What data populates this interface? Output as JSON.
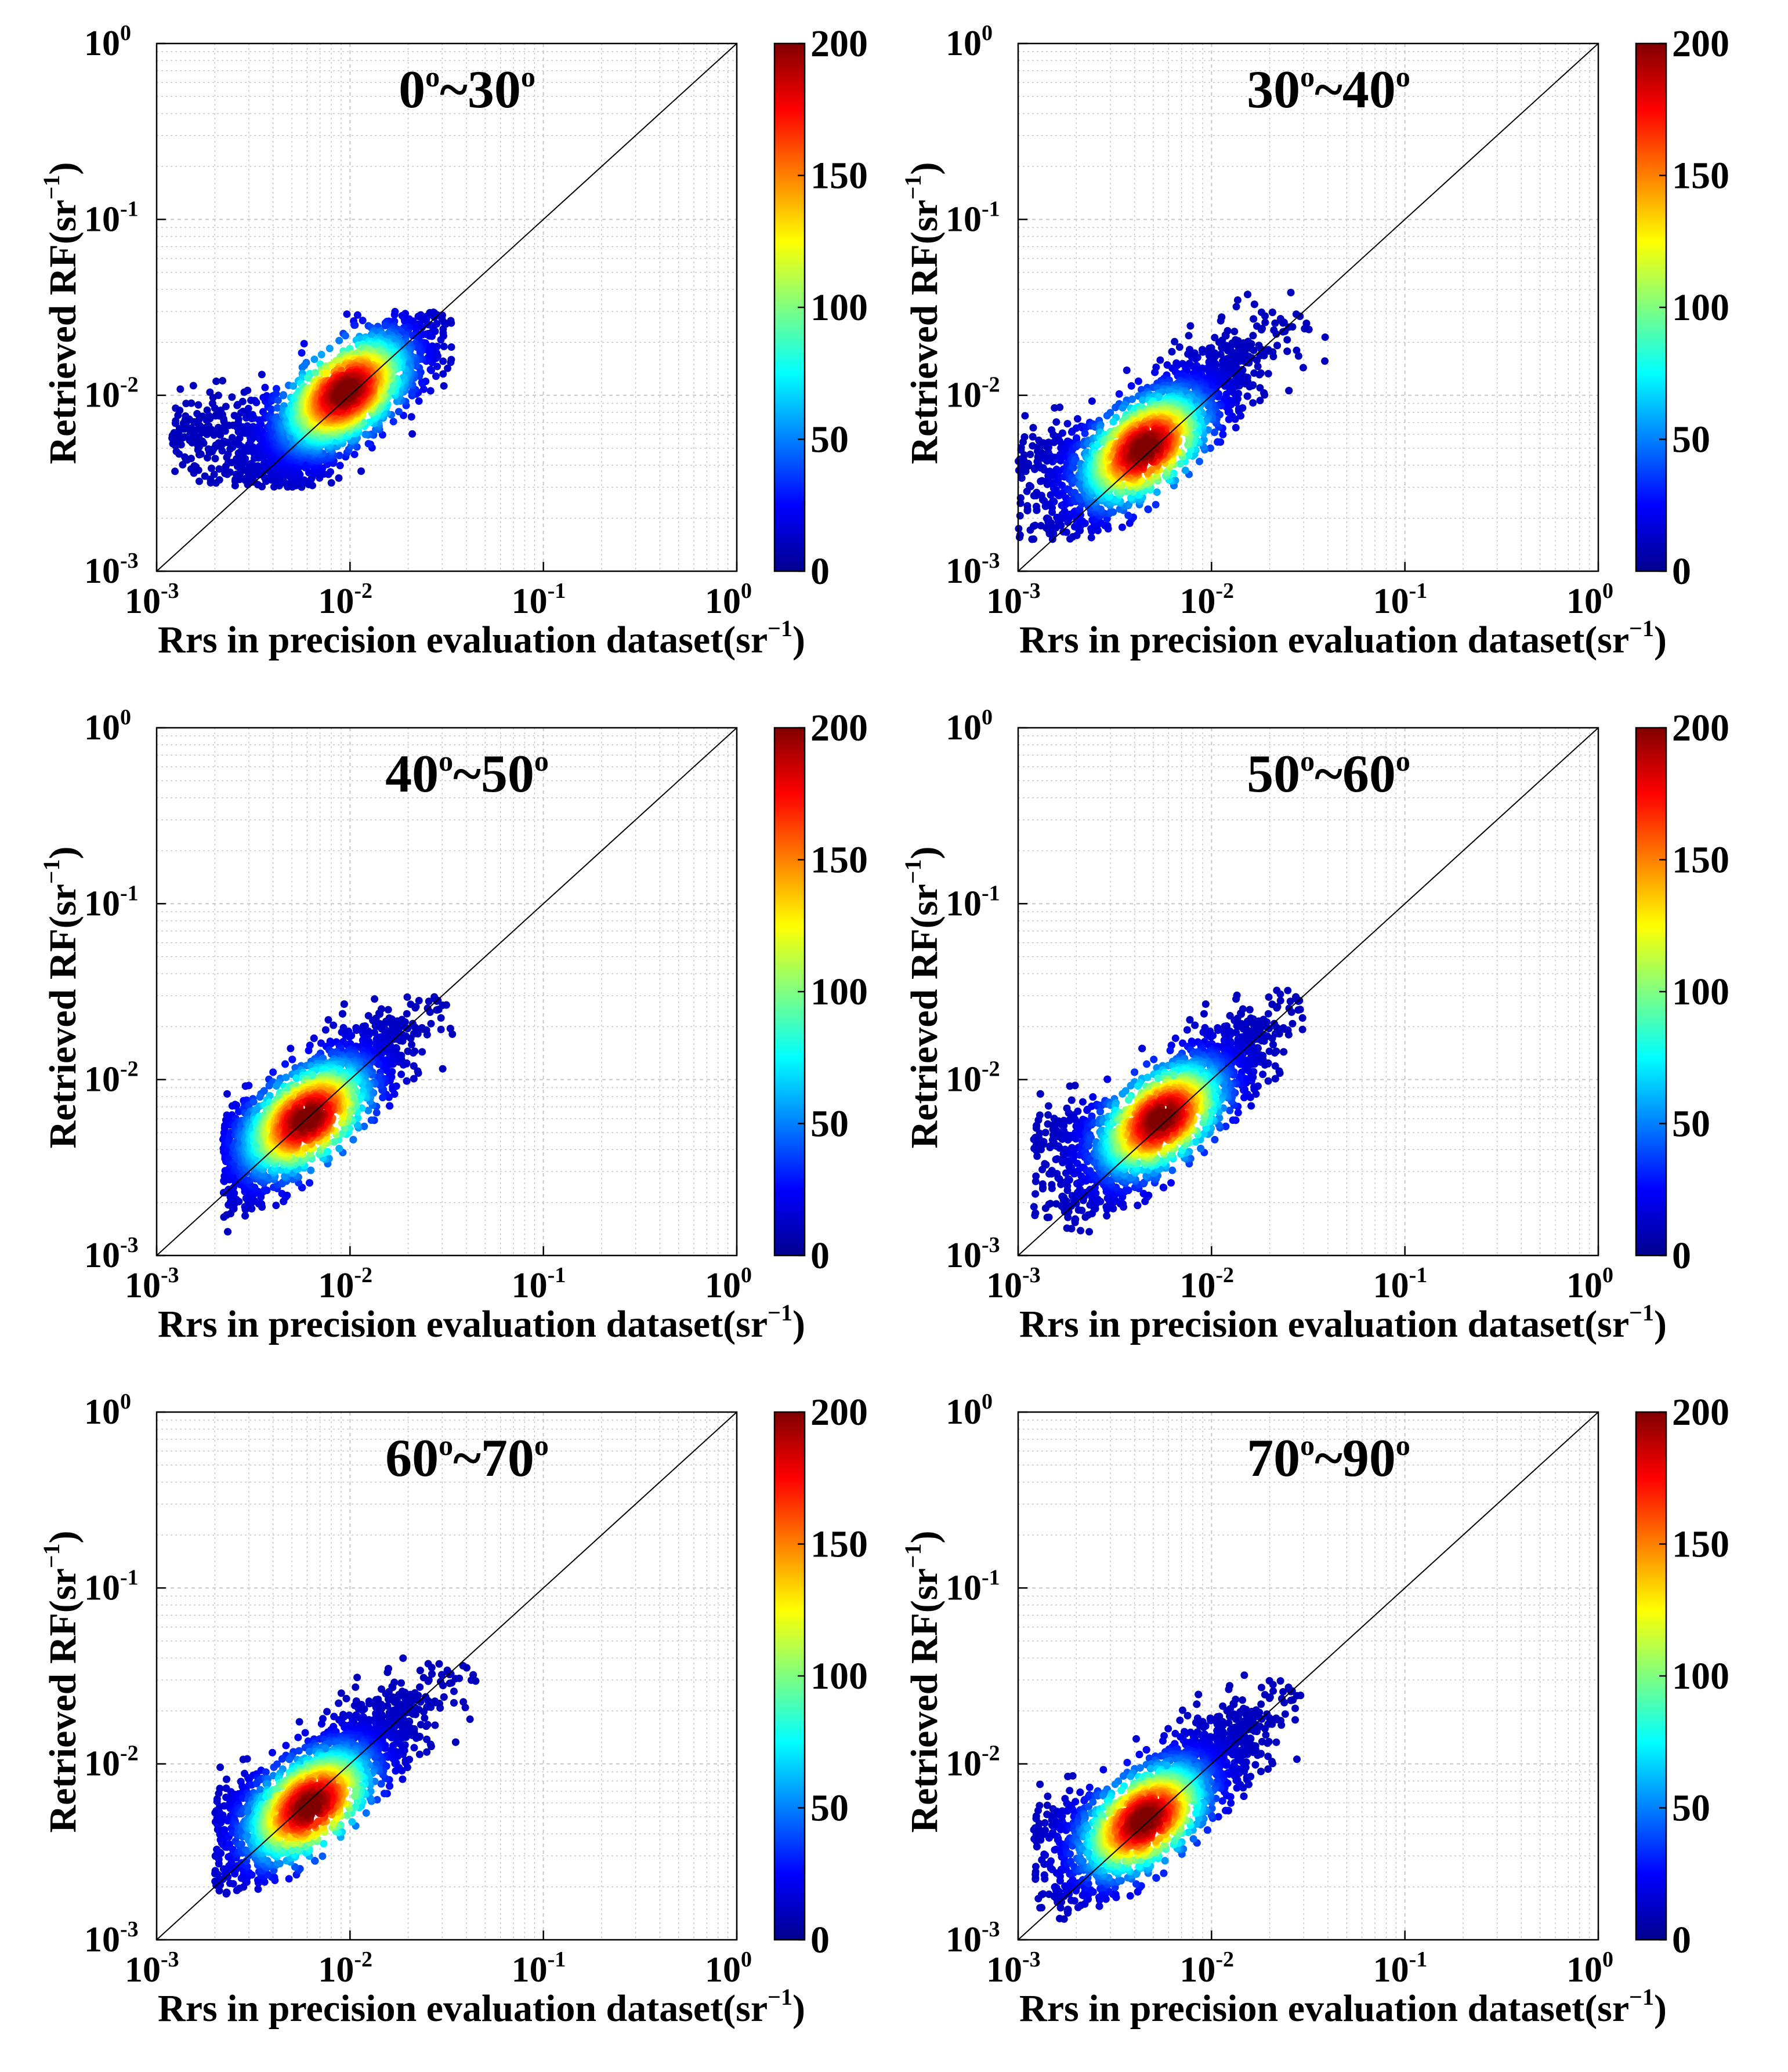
{
  "chart_data": [
    {
      "type": "scatter",
      "subtype": "density-scatter",
      "title": "0°~30°",
      "title_base": [
        "0",
        "30"
      ],
      "xlabel": "Rrs in precision evaluation dataset(sr⁻¹)",
      "ylabel": "Retrieved RF(sr⁻¹)",
      "xscale": "log",
      "yscale": "log",
      "xlim": [
        0.001,
        1
      ],
      "ylim": [
        0.001,
        1
      ],
      "grid": true,
      "reference_line": "1:1",
      "colorbar": {
        "range": [
          0,
          200
        ],
        "ticks": [
          "0",
          "50",
          "100",
          "150",
          "200"
        ],
        "colormap": "jet"
      },
      "cluster": {
        "center": [
          0.0085,
          0.0085
        ],
        "x_range": [
          0.0012,
          0.035
        ],
        "y_range": [
          0.003,
          0.03
        ],
        "peak": [
          0.0095,
          0.0105
        ]
      }
    },
    {
      "type": "scatter",
      "subtype": "density-scatter",
      "title": "30°~40°",
      "title_base": [
        "30",
        "40"
      ],
      "xlabel": "Rrs in precision evaluation dataset(sr⁻¹)",
      "ylabel": "Retrieved RF(sr⁻¹)",
      "xscale": "log",
      "yscale": "log",
      "xlim": [
        0.001,
        1
      ],
      "ylim": [
        0.001,
        1
      ],
      "grid": true,
      "reference_line": "1:1",
      "colorbar": {
        "range": [
          0,
          200
        ],
        "ticks": [
          "0",
          "50",
          "100",
          "150",
          "200"
        ],
        "colormap": "jet"
      },
      "cluster": {
        "center": [
          0.005,
          0.006
        ],
        "x_range": [
          0.001,
          0.04
        ],
        "y_range": [
          0.0015,
          0.04
        ],
        "peak": [
          0.0045,
          0.005
        ]
      }
    },
    {
      "type": "scatter",
      "subtype": "density-scatter",
      "title": "40°~50°",
      "title_base": [
        "40",
        "50"
      ],
      "xlabel": "Rrs in precision evaluation dataset(sr⁻¹)",
      "ylabel": "Retrieved RF(sr⁻¹)",
      "xscale": "log",
      "yscale": "log",
      "xlim": [
        0.001,
        1
      ],
      "ylim": [
        0.001,
        1
      ],
      "grid": true,
      "reference_line": "1:1",
      "colorbar": {
        "range": [
          0,
          200
        ],
        "ticks": [
          "0",
          "50",
          "100",
          "150",
          "200"
        ],
        "colormap": "jet"
      },
      "cluster": {
        "center": [
          0.006,
          0.0065
        ],
        "x_range": [
          0.0022,
          0.035
        ],
        "y_range": [
          0.0013,
          0.03
        ],
        "peak": [
          0.006,
          0.006
        ]
      }
    },
    {
      "type": "scatter",
      "subtype": "density-scatter",
      "title": "50°~60°",
      "title_base": [
        "50",
        "60"
      ],
      "xlabel": "Rrs in precision evaluation dataset(sr⁻¹)",
      "ylabel": "Retrieved RF(sr⁻¹)",
      "xscale": "log",
      "yscale": "log",
      "xlim": [
        0.001,
        1
      ],
      "ylim": [
        0.001,
        1
      ],
      "grid": true,
      "reference_line": "1:1",
      "colorbar": {
        "range": [
          0,
          200
        ],
        "ticks": [
          "0",
          "50",
          "100",
          "150",
          "200"
        ],
        "colormap": "jet"
      },
      "cluster": {
        "center": [
          0.006,
          0.0065
        ],
        "x_range": [
          0.0012,
          0.03
        ],
        "y_range": [
          0.0012,
          0.033
        ],
        "peak": [
          0.0055,
          0.006
        ]
      }
    },
    {
      "type": "scatter",
      "subtype": "density-scatter",
      "title": "60°~70°",
      "title_base": [
        "60",
        "70"
      ],
      "xlabel": "Rrs in precision evaluation dataset(sr⁻¹)",
      "ylabel": "Retrieved RF(sr⁻¹)",
      "xscale": "log",
      "yscale": "log",
      "xlim": [
        0.001,
        1
      ],
      "ylim": [
        0.001,
        1
      ],
      "grid": true,
      "reference_line": "1:1",
      "colorbar": {
        "range": [
          0,
          200
        ],
        "ticks": [
          "0",
          "50",
          "100",
          "150",
          "200"
        ],
        "colormap": "jet"
      },
      "cluster": {
        "center": [
          0.007,
          0.0075
        ],
        "x_range": [
          0.002,
          0.045
        ],
        "y_range": [
          0.0018,
          0.04
        ],
        "peak": [
          0.0062,
          0.0058
        ]
      }
    },
    {
      "type": "scatter",
      "subtype": "density-scatter",
      "title": "70°~90°",
      "title_base": [
        "70",
        "90"
      ],
      "xlabel": "Rrs in precision evaluation dataset(sr⁻¹)",
      "ylabel": "Retrieved RF(sr⁻¹)",
      "xscale": "log",
      "yscale": "log",
      "xlim": [
        0.001,
        1
      ],
      "ylim": [
        0.001,
        1
      ],
      "grid": true,
      "reference_line": "1:1",
      "colorbar": {
        "range": [
          0,
          200
        ],
        "ticks": [
          "0",
          "50",
          "100",
          "150",
          "200"
        ],
        "colormap": "jet"
      },
      "cluster": {
        "center": [
          0.0055,
          0.006
        ],
        "x_range": [
          0.0012,
          0.03
        ],
        "y_range": [
          0.0013,
          0.032
        ],
        "peak": [
          0.0045,
          0.0048
        ]
      }
    }
  ],
  "tick_labels": {
    "x": [
      {
        "base": "10",
        "exp": "-3"
      },
      {
        "base": "10",
        "exp": "-2"
      },
      {
        "base": "10",
        "exp": "-1"
      },
      {
        "base": "10",
        "exp": "0"
      }
    ],
    "y": [
      {
        "base": "10",
        "exp": "-3"
      },
      {
        "base": "10",
        "exp": "-2"
      },
      {
        "base": "10",
        "exp": "-1"
      },
      {
        "base": "10",
        "exp": "0"
      }
    ]
  },
  "labels": {
    "x_main": "Rrs in precision evaluation dataset(sr",
    "y_main": "Retrieved RF(sr",
    "unit_exp": "−1",
    "close": ")",
    "degree": "o",
    "tilde": "~"
  },
  "colors": {
    "jet": [
      "#00008f",
      "#0000ff",
      "#0080ff",
      "#00ffff",
      "#80ff80",
      "#ffff00",
      "#ff8000",
      "#ff0000",
      "#800000"
    ],
    "grid": "#c8c8c8",
    "axis": "#000000"
  }
}
